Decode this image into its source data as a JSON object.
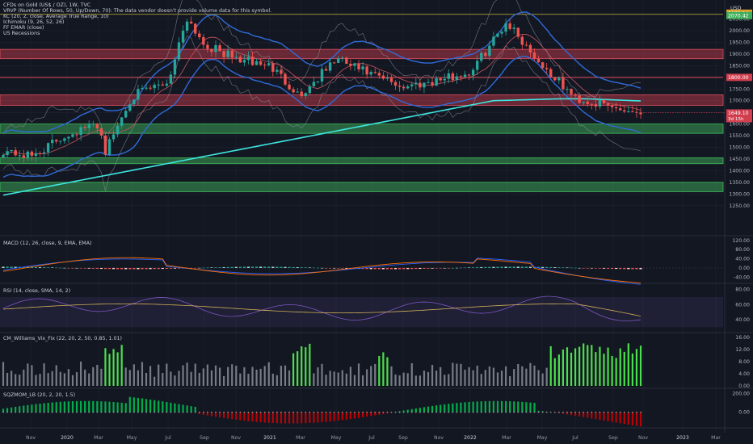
{
  "header": {
    "symbol_line": "CFDs on Gold (US$ / OZ), 1W, TVC",
    "indicators": [
      "VRVP (Number Of Rows, 50, Up/Down, 70): The data vendor doesn't provide volume data for this symbol.",
      "KC (20, 2, close, Average True Range, 10)",
      "Ichimoku (9, 26, 52, 26)",
      "FF EMAR (close)",
      "US Recessions"
    ],
    "currency": "USD"
  },
  "panes": {
    "macd": "MACD (12, 26, close, 9, EMA, EMA)",
    "rsi": "RSI (14, close, SMA, 14, 2)",
    "vix": "CM_Williams_Vix_Fix (22, 20, 2, 50, 0.85, 1.01)",
    "sqz": "SQZMOM_LB (20, 2, 20, 1.5)"
  },
  "colors": {
    "background": "#131722",
    "grid": "#1f2433",
    "up_candle": "#26a69a",
    "down_candle": "#ef5350",
    "ema_cyan": "#3ee6e0",
    "keltner_blue": "#2f6bd8",
    "resistance_zone": "#d13f4f",
    "support_zone": "#3fae5a",
    "vix_green": "#4be04b",
    "vix_gray": "#777b86"
  },
  "price_marks": {
    "top_2075": "2075.14",
    "top_2070": "2070.42",
    "level_1800": "1800.00",
    "last_price": "1649.10",
    "countdown": "3d 15h"
  },
  "chart_data": [
    {
      "type": "line",
      "pane": "price",
      "title": "CFDs on Gold (US$ / OZ), 1W, TVC",
      "x": [
        "2019-10",
        "2019-11",
        "2020-01",
        "2020-03",
        "2020-05",
        "2020-07",
        "2020-09",
        "2020-11",
        "2021-01",
        "2021-03",
        "2021-05",
        "2021-07",
        "2021-09",
        "2021-11",
        "2022-01",
        "2022-03",
        "2022-05",
        "2022-07",
        "2022-09",
        "2022-10"
      ],
      "series": [
        {
          "values": [
            1495,
            1465,
            1560,
            1600,
            1720,
            1980,
            1880,
            1870,
            1850,
            1715,
            1880,
            1810,
            1760,
            1780,
            1820,
            2000,
            1850,
            1710,
            1670,
            1649
          ]
        }
      ],
      "yticks": [
        1250,
        1300,
        1350,
        1400,
        1450,
        1500,
        1550,
        1600,
        1650,
        1700,
        1750,
        1800,
        1850,
        1900,
        1950,
        2000,
        2050
      ],
      "ylim": [
        1225,
        2090
      ],
      "xticks": [
        "Nov",
        "2020",
        "Mar",
        "May",
        "Jul",
        "Sep",
        "Nov",
        "2021",
        "Mar",
        "May",
        "Jul",
        "Sep",
        "Nov",
        "2022",
        "Mar",
        "May",
        "Jul",
        "Sep",
        "Nov",
        "2023",
        "Mar"
      ],
      "resistance_zones": [
        [
          1880,
          1920
        ],
        [
          1680,
          1725
        ]
      ],
      "support_zones": [
        [
          1560,
          1600
        ],
        [
          1430,
          1455
        ],
        [
          1310,
          1350
        ]
      ],
      "horizontal_lines": [
        1800
      ],
      "last_price": 1649.1
    },
    {
      "type": "bar",
      "pane": "macd",
      "title": "MACD (12, 26, close, 9, EMA, EMA)",
      "yticks": [
        120.0,
        80.0,
        40.0,
        0.0,
        -40.0
      ],
      "ylim": [
        -60,
        130
      ]
    },
    {
      "type": "line",
      "pane": "rsi",
      "title": "RSI (14, close, SMA, 14, 2)",
      "yticks": [
        80.0,
        60.0,
        40.0
      ],
      "ylim": [
        25,
        85
      ],
      "band": [
        30,
        70
      ]
    },
    {
      "type": "bar",
      "pane": "vix",
      "title": "CM_Williams_Vix_Fix (22, 20, 2, 50, 0.85, 1.01)",
      "yticks": [
        16.0,
        12.0,
        8.0,
        4.0,
        0.0
      ],
      "ylim": [
        0,
        17
      ]
    },
    {
      "type": "bar",
      "pane": "sqz",
      "title": "SQZMOM_LB (20, 2, 20, 1.5)",
      "yticks": [
        200.0,
        0.0
      ],
      "ylim": [
        -150,
        230
      ]
    }
  ]
}
